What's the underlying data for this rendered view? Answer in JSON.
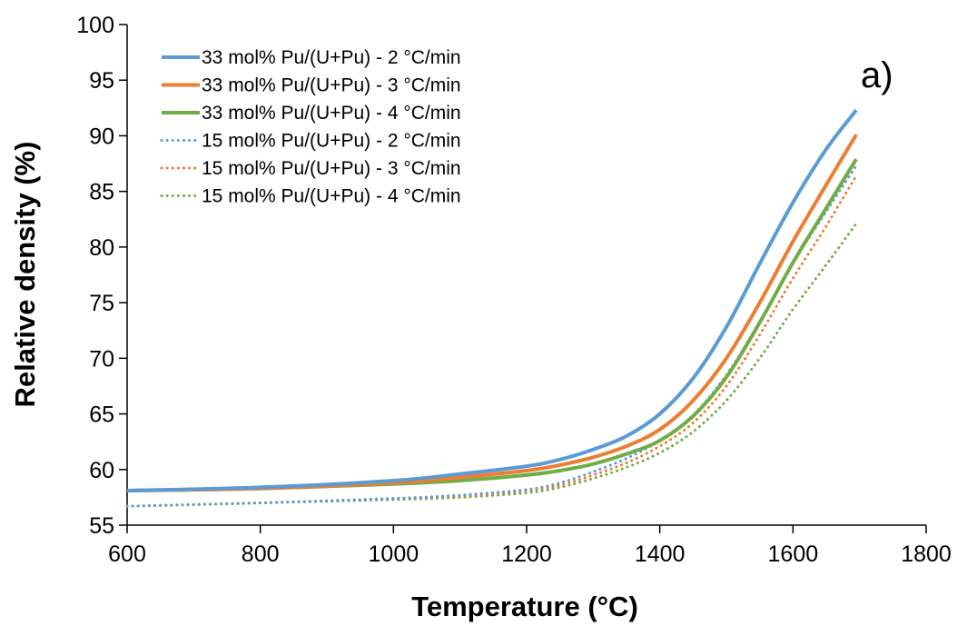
{
  "chart_data": {
    "type": "line",
    "title": "",
    "annotation": "a)",
    "xlabel": "Temperature (°C)",
    "ylabel": "Relative density (%)",
    "xlim": [
      600,
      1800
    ],
    "ylim": [
      55,
      100
    ],
    "xticks": [
      600,
      800,
      1000,
      1200,
      1400,
      1600,
      1800
    ],
    "yticks": [
      55,
      60,
      65,
      70,
      75,
      80,
      85,
      90,
      95,
      100
    ],
    "grid": false,
    "legend_position": "top-left",
    "series": [
      {
        "name": "33 mol% Pu/(U+Pu) - 2 °C/min",
        "color": "#5B9BD5",
        "style": "solid",
        "x": [
          600,
          800,
          1000,
          1100,
          1200,
          1250,
          1300,
          1350,
          1400,
          1450,
          1500,
          1550,
          1600,
          1650,
          1695
        ],
        "y": [
          58.1,
          58.4,
          59.0,
          59.6,
          60.3,
          60.9,
          61.8,
          63.0,
          65.0,
          68.2,
          72.8,
          78.5,
          84.0,
          88.8,
          92.3
        ]
      },
      {
        "name": "33 mol% Pu/(U+Pu) - 3 °C/min",
        "color": "#ED7D31",
        "style": "solid",
        "x": [
          600,
          800,
          1000,
          1100,
          1200,
          1250,
          1300,
          1350,
          1400,
          1450,
          1500,
          1550,
          1600,
          1650,
          1695
        ],
        "y": [
          58.1,
          58.3,
          58.8,
          59.3,
          59.9,
          60.4,
          61.1,
          62.1,
          63.6,
          66.2,
          70.0,
          75.0,
          80.5,
          85.6,
          90.1
        ]
      },
      {
        "name": "33 mol% Pu/(U+Pu) - 4 °C/min",
        "color": "#70AD47",
        "style": "solid",
        "x": [
          600,
          800,
          1000,
          1100,
          1200,
          1250,
          1300,
          1350,
          1400,
          1450,
          1500,
          1550,
          1600,
          1650,
          1695
        ],
        "y": [
          58.1,
          58.3,
          58.7,
          59.0,
          59.5,
          59.9,
          60.5,
          61.4,
          62.6,
          64.8,
          68.3,
          73.2,
          78.6,
          83.5,
          87.9
        ]
      },
      {
        "name": "15 mol% Pu/(U+Pu) - 2 °C/min",
        "color": "#5B9BD5",
        "style": "dotted",
        "x": [
          600,
          800,
          1000,
          1100,
          1200,
          1250,
          1300,
          1350,
          1400,
          1450,
          1500,
          1550,
          1600,
          1650,
          1695
        ],
        "y": [
          56.7,
          57.0,
          57.4,
          57.7,
          58.2,
          58.8,
          59.8,
          61.0,
          62.6,
          64.9,
          68.5,
          73.3,
          78.6,
          83.2,
          87.3
        ]
      },
      {
        "name": "15 mol% Pu/(U+Pu) - 3 °C/min",
        "color": "#ED7D31",
        "style": "dotted",
        "x": [
          600,
          800,
          1000,
          1100,
          1200,
          1250,
          1300,
          1350,
          1400,
          1450,
          1500,
          1550,
          1600,
          1650,
          1695
        ],
        "y": [
          56.7,
          57.0,
          57.4,
          57.6,
          58.1,
          58.6,
          59.5,
          60.6,
          62.1,
          64.2,
          67.5,
          72.1,
          77.2,
          81.9,
          86.4
        ]
      },
      {
        "name": "15 mol% Pu/(U+Pu) - 4 °C/min",
        "color": "#70AD47",
        "style": "dotted",
        "x": [
          600,
          800,
          1000,
          1100,
          1200,
          1250,
          1300,
          1350,
          1400,
          1450,
          1500,
          1550,
          1600,
          1650,
          1695
        ],
        "y": [
          56.7,
          57.0,
          57.3,
          57.5,
          57.9,
          58.4,
          59.2,
          60.2,
          61.5,
          63.4,
          66.2,
          70.0,
          74.4,
          78.4,
          82.1
        ]
      }
    ]
  }
}
